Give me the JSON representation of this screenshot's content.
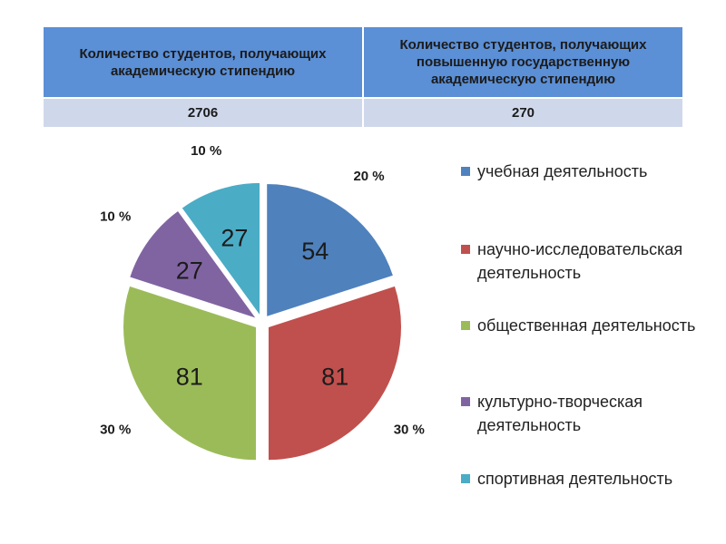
{
  "table": {
    "headers": [
      "Количество студентов, получающих академическую стипендию",
      "Количество студентов, получающих повышенную государственную академическую стипендию"
    ],
    "values": [
      "2706",
      "270"
    ]
  },
  "chart_data": {
    "type": "pie",
    "categories": [
      "учебная деятельность",
      "научно-исследовательская деятельность",
      "общественная деятельность",
      "культурно-творческая деятельность",
      "спортивная деятельность"
    ],
    "values": [
      54,
      81,
      81,
      27,
      27
    ],
    "percent_labels": [
      "20 %",
      "30 %",
      "30 %",
      "10 %",
      "10 %"
    ],
    "colors": [
      "#4f81bd",
      "#c0504d",
      "#9bbb59",
      "#8064a2",
      "#4bacc6"
    ],
    "legend_position": "right",
    "exploded": true
  }
}
